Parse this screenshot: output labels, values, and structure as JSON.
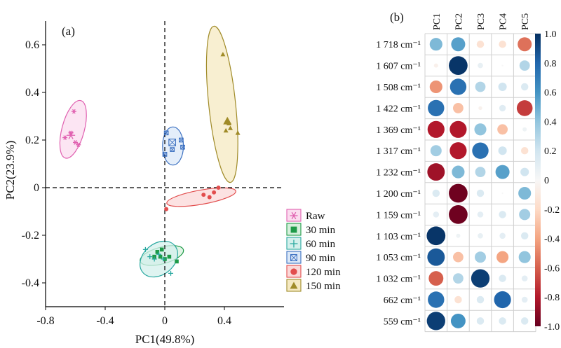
{
  "chart_data": [
    {
      "type": "scatter",
      "panel_label": "(a)",
      "xlabel": "PC1(49.8%)",
      "ylabel": "PC2(23.9%)",
      "xlim": [
        -0.8,
        0.8
      ],
      "ylim": [
        -0.5,
        0.7
      ],
      "xticks": [
        -0.8,
        -0.4,
        0,
        0.4
      ],
      "xtick_labels": [
        "-0.8",
        "-0.4",
        "0",
        "0.4"
      ],
      "yticks": [
        -0.4,
        -0.2,
        0,
        0.2,
        0.4,
        0.6
      ],
      "ytick_labels": [
        "-0.4",
        "-0.2",
        "0",
        "0.2",
        "0.4",
        "0.6"
      ],
      "series": [
        {
          "name": "Raw",
          "marker": "asterisk",
          "color": "#e060b0",
          "fill": "#fbdcef",
          "points": [
            [
              -0.61,
              0.32
            ],
            [
              -0.67,
              0.21
            ],
            [
              -0.63,
              0.23
            ],
            [
              -0.6,
              0.19
            ],
            [
              -0.58,
              0.18
            ],
            [
              -0.63,
              0.22
            ]
          ],
          "ellipse": {
            "cx": -0.615,
            "cy": 0.245,
            "rx": 0.075,
            "ry": 0.125,
            "angle": -15
          }
        },
        {
          "name": "30 min",
          "marker": "square",
          "color": "#1e9a48",
          "fill": "#d6f0dc",
          "points": [
            [
              -0.05,
              -0.27
            ],
            [
              -0.03,
              -0.29
            ],
            [
              0.0,
              -0.3
            ],
            [
              0.03,
              -0.29
            ],
            [
              -0.02,
              -0.26
            ],
            [
              0.08,
              -0.31
            ],
            [
              -0.07,
              -0.29
            ]
          ],
          "ellipse": {
            "cx": -0.02,
            "cy": -0.285,
            "rx": 0.15,
            "ry": 0.035,
            "angle": 15
          }
        },
        {
          "name": "60 min",
          "marker": "plus",
          "color": "#28a8a0",
          "fill": "#d4f0ec",
          "points": [
            [
              -0.13,
              -0.26
            ],
            [
              -0.1,
              -0.29
            ],
            [
              -0.07,
              -0.3
            ],
            [
              -0.04,
              -0.28
            ],
            [
              0.04,
              -0.36
            ],
            [
              -0.01,
              -0.3
            ]
          ],
          "ellipse": {
            "cx": -0.04,
            "cy": -0.3,
            "rx": 0.14,
            "ry": 0.065,
            "angle": 40
          }
        },
        {
          "name": "90 min",
          "marker": "squarecross",
          "color": "#3a6fc0",
          "fill": "#dbe8f8",
          "points": [
            [
              0.01,
              0.23
            ],
            [
              0.05,
              0.16
            ],
            [
              0.12,
              0.17
            ],
            [
              0.11,
              0.2
            ],
            [
              0.0,
              0.14
            ],
            [
              0.05,
              0.19
            ]
          ],
          "ellipse": {
            "cx": 0.055,
            "cy": 0.175,
            "rx": 0.07,
            "ry": 0.08,
            "angle": 0
          }
        },
        {
          "name": "120 min",
          "marker": "circle",
          "color": "#e24d4d",
          "fill": "#fbd8d8",
          "points": [
            [
              0.01,
              -0.09
            ],
            [
              0.26,
              -0.03
            ],
            [
              0.33,
              -0.02
            ],
            [
              0.36,
              0.0
            ],
            [
              0.3,
              -0.04
            ]
          ],
          "ellipse": {
            "cx": 0.245,
            "cy": -0.04,
            "rx": 0.235,
            "ry": 0.03,
            "angle": 10
          }
        },
        {
          "name": "150 min",
          "marker": "triangle",
          "color": "#a08b28",
          "fill": "#f5e9c2",
          "points": [
            [
              0.39,
              0.56
            ],
            [
              0.42,
              0.28
            ],
            [
              0.43,
              0.27
            ],
            [
              0.44,
              0.25
            ],
            [
              0.49,
              0.23
            ],
            [
              0.41,
              0.24
            ]
          ],
          "ellipse": {
            "cx": 0.385,
            "cy": 0.35,
            "rx": 0.09,
            "ry": 0.33,
            "angle": 6
          }
        }
      ]
    },
    {
      "type": "heatmap",
      "panel_label": "(b)",
      "columns": [
        "PC1",
        "PC2",
        "PC3",
        "PC4",
        "PC5"
      ],
      "rows": [
        "1 718 cm⁻¹",
        "1 607 cm⁻¹",
        "1 508 cm⁻¹",
        "1 422 cm⁻¹",
        "1 369 cm⁻¹",
        "1 317 cm⁻¹",
        "1 232 cm⁻¹",
        "1 200 cm⁻¹",
        "1 159 cm⁻¹",
        "1 103 cm⁻¹",
        "1 053 cm⁻¹",
        "1 032 cm⁻¹",
        "662 cm⁻¹",
        "559 cm⁻¹"
      ],
      "values": [
        [
          0.45,
          0.55,
          -0.15,
          -0.15,
          -0.55
        ],
        [
          -0.05,
          0.98,
          0.08,
          0.0,
          0.3
        ],
        [
          -0.45,
          0.75,
          0.3,
          0.2,
          0.15
        ],
        [
          0.75,
          -0.3,
          -0.04,
          0.12,
          -0.7
        ],
        [
          -0.8,
          -0.8,
          0.4,
          -0.3,
          0.05
        ],
        [
          0.35,
          -0.8,
          0.75,
          0.2,
          -0.15
        ],
        [
          -0.85,
          0.45,
          0.3,
          0.55,
          0.2
        ],
        [
          0.15,
          -0.98,
          0.15,
          0.0,
          0.45
        ],
        [
          0.1,
          -0.98,
          0.1,
          0.15,
          0.35
        ],
        [
          0.98,
          0.05,
          0.08,
          0.1,
          0.15
        ],
        [
          0.85,
          -0.3,
          0.35,
          -0.4,
          0.4
        ],
        [
          -0.6,
          0.3,
          0.95,
          0.15,
          0.1
        ],
        [
          0.75,
          -0.15,
          0.15,
          0.8,
          0.1
        ],
        [
          0.95,
          0.6,
          0.15,
          0.15,
          0.15
        ]
      ],
      "colorbar_ticks": [
        "1.0",
        "0.8",
        "0.6",
        "0.4",
        "0.2",
        "0",
        "-0.2",
        "-0.4",
        "-0.6",
        "-0.8",
        "-1.0"
      ],
      "colormap": [
        "#67001f",
        "#b2182b",
        "#d6604d",
        "#f4a582",
        "#fddbc7",
        "#f7f7f7",
        "#d1e5f0",
        "#92c5de",
        "#4393c3",
        "#2166ac",
        "#053061"
      ]
    }
  ]
}
